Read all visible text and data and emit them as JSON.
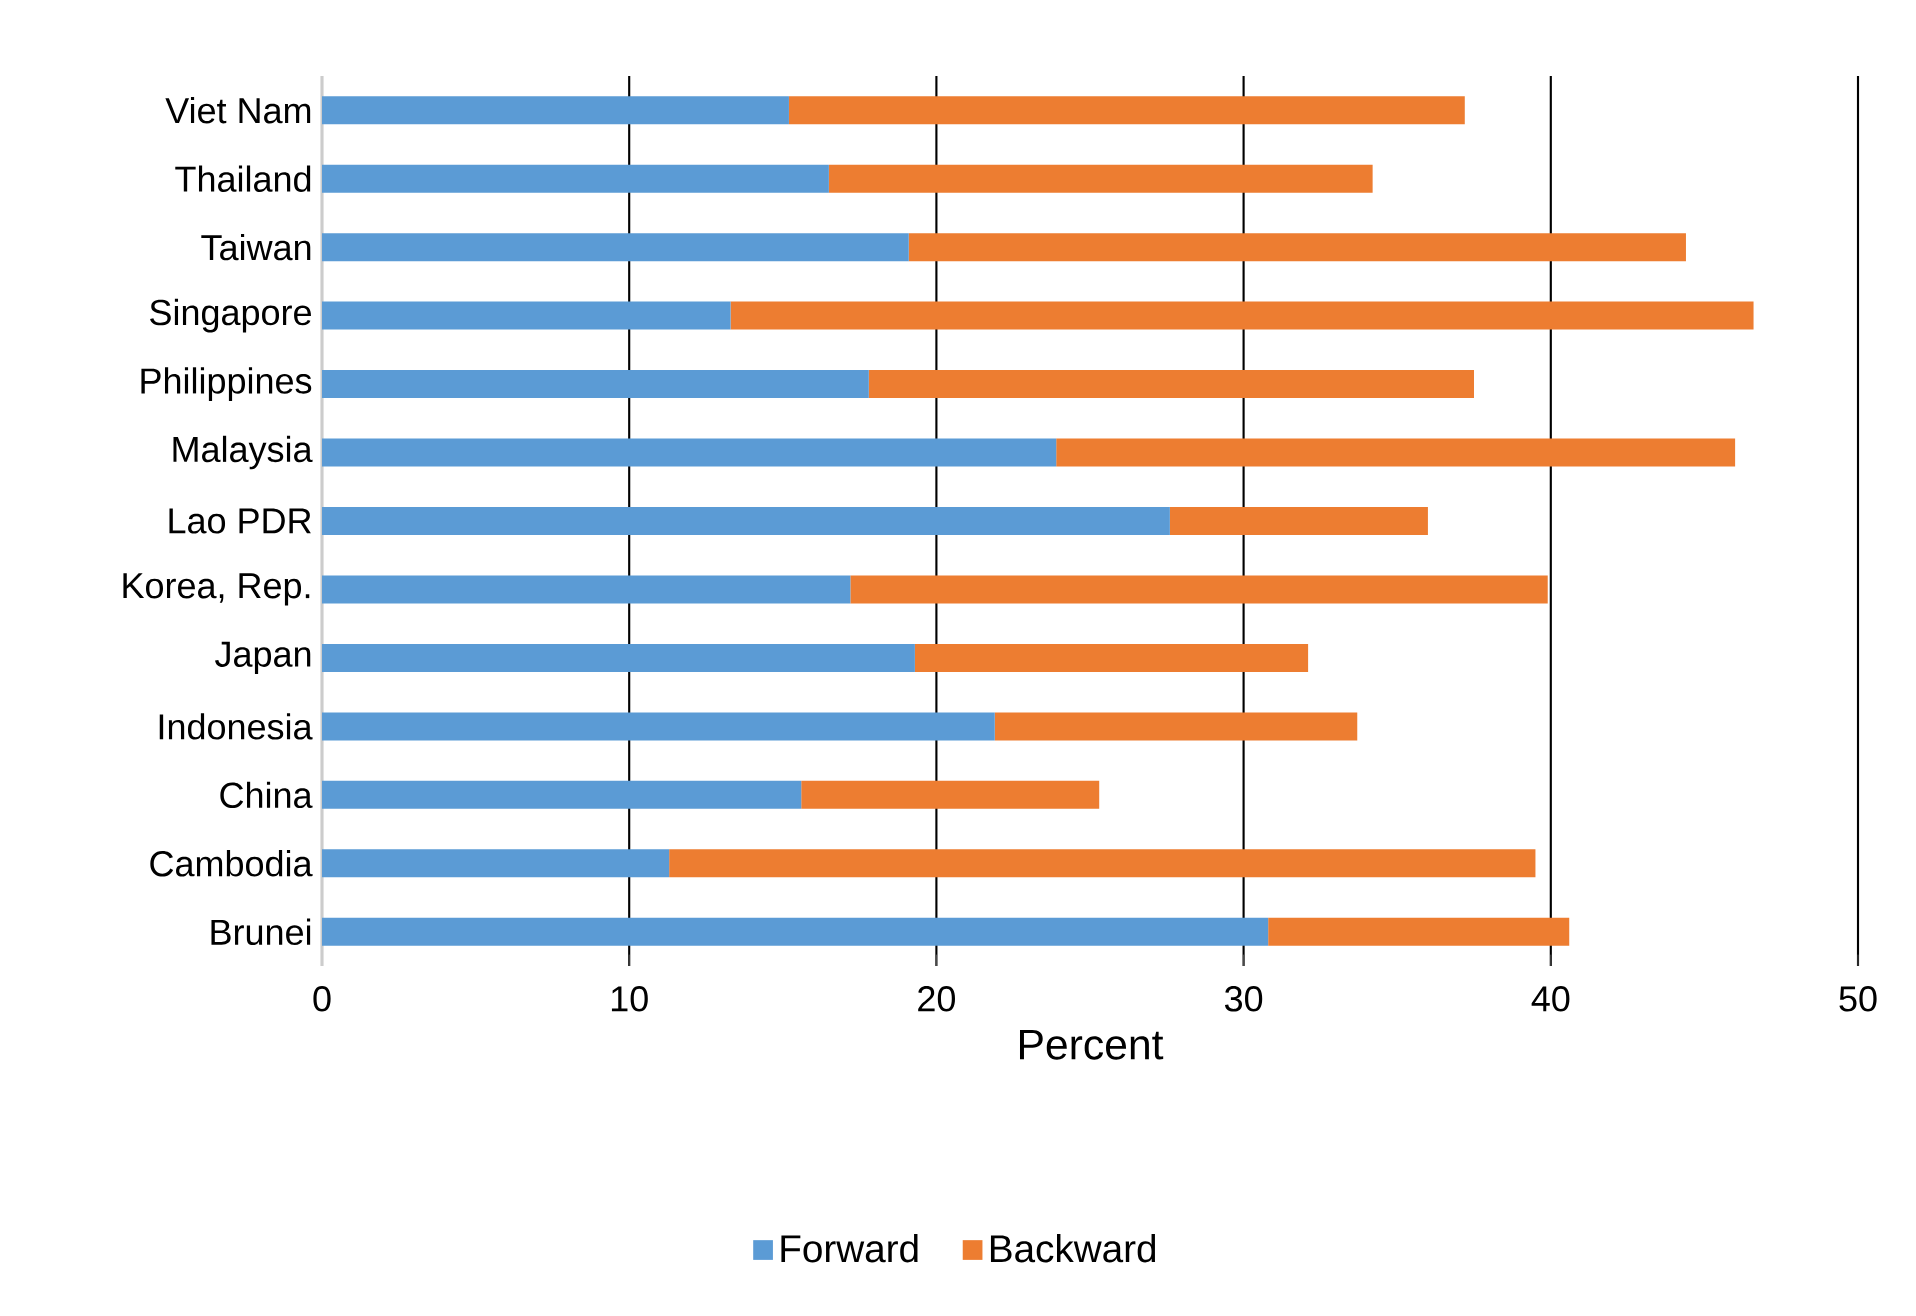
{
  "chart_data": {
    "type": "bar",
    "orientation": "horizontal",
    "stacked": true,
    "xlabel": "Percent",
    "categories": [
      "Viet Nam",
      "Thailand",
      "Taiwan",
      "Singapore",
      "Philippines",
      "Malaysia",
      "Lao PDR",
      "Korea, Rep.",
      "Japan",
      "Indonesia",
      "China",
      "Cambodia",
      "Brunei"
    ],
    "series": [
      {
        "name": "Forward",
        "color": "#5b9bd5",
        "values": [
          15.2,
          16.5,
          19.1,
          13.3,
          17.8,
          23.9,
          27.6,
          17.2,
          19.3,
          21.9,
          15.6,
          11.3,
          30.8
        ]
      },
      {
        "name": "Backward",
        "color": "#ed7d31",
        "values": [
          22.0,
          17.7,
          25.3,
          33.3,
          19.7,
          22.1,
          8.4,
          22.7,
          12.8,
          11.8,
          9.7,
          28.2,
          9.8
        ]
      }
    ],
    "xlim": [
      0,
      50
    ],
    "xticks": [
      0,
      10,
      20,
      30,
      40,
      50
    ],
    "grid": "x",
    "legend": "bottom"
  }
}
